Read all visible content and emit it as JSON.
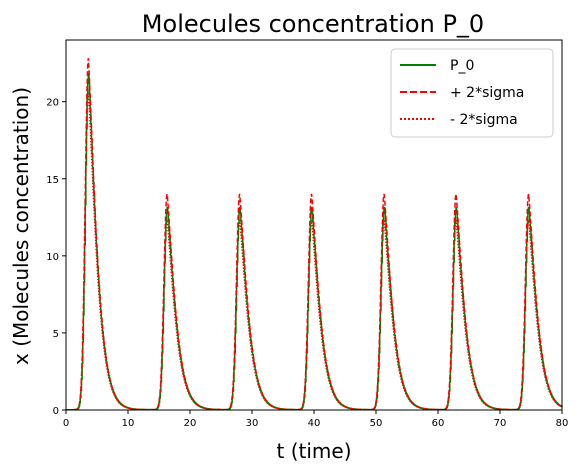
{
  "chart_data": {
    "type": "line",
    "title": "Molecules concentration P_0",
    "xlabel": "t (time)",
    "ylabel": "x (Molecules concentration)",
    "xlim": [
      0,
      80
    ],
    "ylim": [
      0,
      24
    ],
    "xticks": [
      0,
      10,
      20,
      30,
      40,
      50,
      60,
      70,
      80
    ],
    "yticks": [
      0,
      5,
      10,
      15,
      20
    ],
    "grid": false,
    "legend_position": "top-right",
    "pulse_peaks": [
      {
        "t": 3.6,
        "mean": 21.8,
        "upper": 22.8,
        "lower": 20.7
      },
      {
        "t": 16.3,
        "mean": 13.1,
        "upper": 14.0,
        "lower": 12.3
      },
      {
        "t": 28.0,
        "mean": 13.1,
        "upper": 14.0,
        "lower": 12.3
      },
      {
        "t": 39.6,
        "mean": 13.1,
        "upper": 14.0,
        "lower": 12.3
      },
      {
        "t": 51.3,
        "mean": 13.1,
        "upper": 14.0,
        "lower": 12.3
      },
      {
        "t": 62.9,
        "mean": 13.1,
        "upper": 14.0,
        "lower": 12.3
      },
      {
        "t": 74.6,
        "mean": 13.1,
        "upper": 14.0,
        "lower": 12.3
      }
    ],
    "series": [
      {
        "name": "P_0",
        "color": "#008000",
        "style": "solid"
      },
      {
        "name": "+ 2*sigma",
        "color": "#ff0000",
        "style": "dashed"
      },
      {
        "name": "- 2*sigma",
        "color": "#ff0000",
        "style": "dotted"
      }
    ]
  }
}
